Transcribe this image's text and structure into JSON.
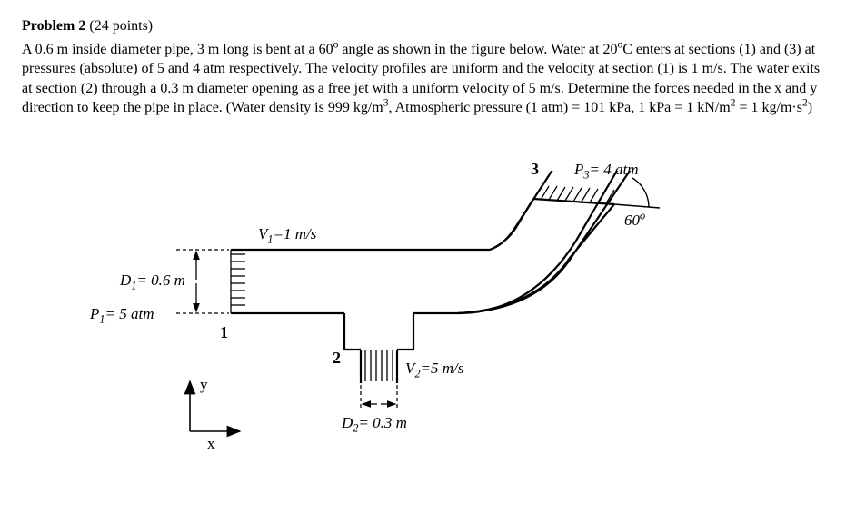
{
  "problem": {
    "title_label": "Problem 2",
    "points": "(24 points)",
    "text_html": "A 0.6 m inside diameter pipe, 3 m long is bent at a 60<sup>o</sup> angle as shown in the figure below.  Water at 20<sup>o</sup>C enters at sections (1) and (3) at pressures (absolute) of 5 and 4 atm respectively.  The velocity profiles are uniform and the velocity at section (1) is 1 m/s.  The water exits at section (2) through a 0.3 m diameter opening as a free jet with a uniform velocity of 5 m/s.  Determine the forces needed in the x and y direction to keep the pipe in place. (Water density is 999 kg/m<sup>3</sup>, Atmospheric pressure (1 atm) = 101 kPa, 1 kPa = 1 kN/m<sup>2</sup> = 1 kg/m·s<sup>2</sup>)"
  },
  "figure": {
    "sections": {
      "s1": "1",
      "s2": "2",
      "s3": "3"
    },
    "labels": {
      "D1": "D<sub>1</sub>= 0.6 m",
      "P1": "P<sub>1</sub>= 5 atm",
      "V1": "V<sub>1</sub>=1 m/s",
      "V2": "V<sub>2</sub>=5 m/s",
      "D2": "D<sub>2</sub>= 0.3 m",
      "P3": "P<sub>3</sub>= 4 atm",
      "angle": "60<sup>o</sup>",
      "axis_x": "x",
      "axis_y": "y"
    },
    "style": {
      "stroke": "#000000",
      "stroke_width": 2.2,
      "dash": "3,3",
      "hatch_gap": 5
    }
  }
}
